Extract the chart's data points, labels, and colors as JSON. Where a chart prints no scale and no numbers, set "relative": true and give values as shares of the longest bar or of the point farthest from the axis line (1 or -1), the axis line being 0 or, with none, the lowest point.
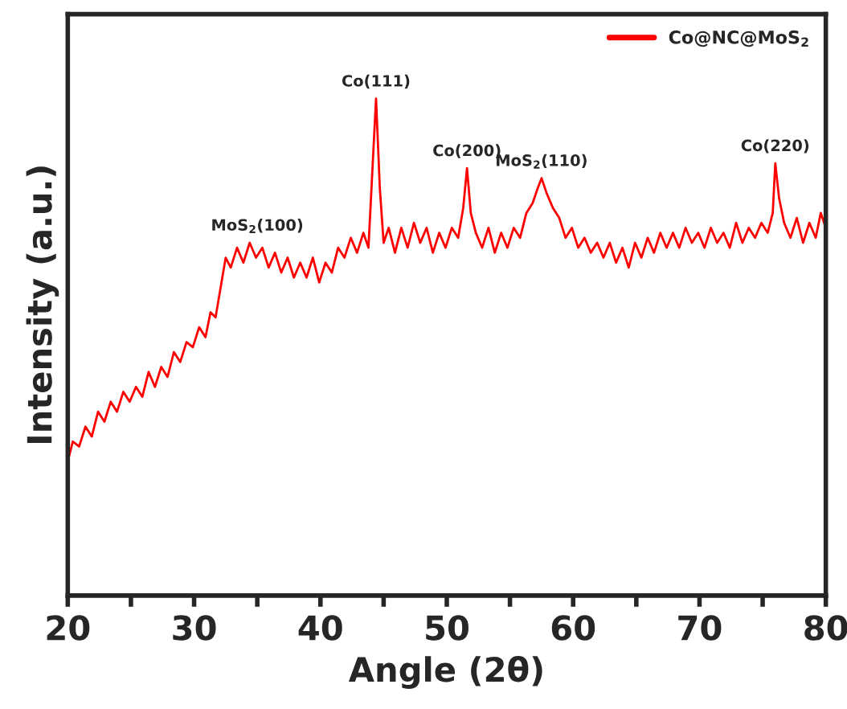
{
  "chart_data": {
    "type": "line",
    "relative": true,
    "xlabel": "Angle (2θ)",
    "ylabel": "Intensity (a.u.)",
    "xlim": [
      20,
      80
    ],
    "xticks": [
      20,
      {
        "value": 25,
        "label": null
      },
      30,
      {
        "value": 35,
        "label": null
      },
      40,
      {
        "value": 45,
        "label": null
      },
      50,
      {
        "value": 55,
        "label": null
      },
      60,
      {
        "value": 65,
        "label": null
      },
      70,
      {
        "value": 75,
        "label": null
      },
      80
    ],
    "legend": "top right",
    "grid": false,
    "marker": "none",
    "line_style": "solid",
    "series": [
      {
        "name": "Co@NC@MoS$_{2}$",
        "color": "#ff0000",
        "x": [
          20.0,
          20.4,
          20.9,
          21.4,
          21.9,
          22.4,
          22.9,
          23.4,
          23.9,
          24.4,
          24.9,
          25.4,
          25.9,
          26.4,
          26.9,
          27.4,
          27.9,
          28.4,
          28.9,
          29.4,
          29.9,
          30.4,
          30.9,
          31.3,
          31.7,
          32.1,
          32.5,
          32.9,
          33.4,
          33.9,
          34.4,
          34.9,
          35.4,
          35.9,
          36.4,
          36.9,
          37.4,
          37.9,
          38.4,
          38.9,
          39.4,
          39.9,
          40.4,
          40.9,
          41.4,
          41.9,
          42.4,
          42.9,
          43.4,
          43.8,
          44.1,
          44.4,
          44.7,
          45.0,
          45.4,
          45.9,
          46.4,
          46.9,
          47.4,
          47.9,
          48.4,
          48.9,
          49.4,
          49.9,
          50.4,
          50.9,
          51.3,
          51.6,
          51.9,
          52.3,
          52.8,
          53.3,
          53.8,
          54.3,
          54.8,
          55.3,
          55.8,
          56.3,
          56.8,
          57.2,
          57.5,
          57.9,
          58.4,
          58.9,
          59.4,
          59.9,
          60.4,
          60.9,
          61.4,
          61.9,
          62.4,
          62.9,
          63.4,
          63.9,
          64.4,
          64.9,
          65.4,
          65.9,
          66.4,
          66.9,
          67.4,
          67.9,
          68.4,
          68.9,
          69.4,
          69.9,
          70.4,
          70.9,
          71.4,
          71.9,
          72.4,
          72.9,
          73.4,
          73.9,
          74.4,
          74.9,
          75.4,
          75.8,
          76.0,
          76.3,
          76.7,
          77.2,
          77.7,
          78.2,
          78.7,
          79.2,
          79.6,
          80.0
        ],
        "values": [
          0.27,
          0.31,
          0.3,
          0.34,
          0.32,
          0.37,
          0.35,
          0.39,
          0.37,
          0.41,
          0.39,
          0.42,
          0.4,
          0.45,
          0.42,
          0.46,
          0.44,
          0.49,
          0.47,
          0.51,
          0.5,
          0.54,
          0.52,
          0.57,
          0.56,
          0.62,
          0.68,
          0.66,
          0.7,
          0.67,
          0.71,
          0.68,
          0.7,
          0.66,
          0.69,
          0.65,
          0.68,
          0.64,
          0.67,
          0.64,
          0.68,
          0.63,
          0.67,
          0.65,
          0.7,
          0.68,
          0.72,
          0.69,
          0.73,
          0.7,
          0.85,
          1.0,
          0.82,
          0.71,
          0.74,
          0.69,
          0.74,
          0.7,
          0.75,
          0.71,
          0.74,
          0.69,
          0.73,
          0.7,
          0.74,
          0.72,
          0.78,
          0.86,
          0.77,
          0.73,
          0.7,
          0.74,
          0.69,
          0.73,
          0.7,
          0.74,
          0.72,
          0.77,
          0.79,
          0.82,
          0.84,
          0.81,
          0.78,
          0.76,
          0.72,
          0.74,
          0.7,
          0.72,
          0.69,
          0.71,
          0.68,
          0.71,
          0.67,
          0.7,
          0.66,
          0.71,
          0.68,
          0.72,
          0.69,
          0.73,
          0.7,
          0.73,
          0.7,
          0.74,
          0.71,
          0.73,
          0.7,
          0.74,
          0.71,
          0.73,
          0.7,
          0.75,
          0.71,
          0.74,
          0.72,
          0.75,
          0.73,
          0.77,
          0.87,
          0.8,
          0.75,
          0.72,
          0.76,
          0.71,
          0.75,
          0.72,
          0.77,
          0.74
        ]
      }
    ],
    "annotations": [
      {
        "text": "MoS$_{2}$(100)",
        "x": 35.0,
        "y": 0.71
      },
      {
        "text": "Co(111)",
        "x": 44.4,
        "y": 1.0
      },
      {
        "text": "Co(200)",
        "x": 51.6,
        "y": 0.86
      },
      {
        "text": "MoS$_{2}$(110)",
        "x": 57.5,
        "y": 0.84
      },
      {
        "text": "Co(220)",
        "x": 76.0,
        "y": 0.87
      }
    ]
  }
}
